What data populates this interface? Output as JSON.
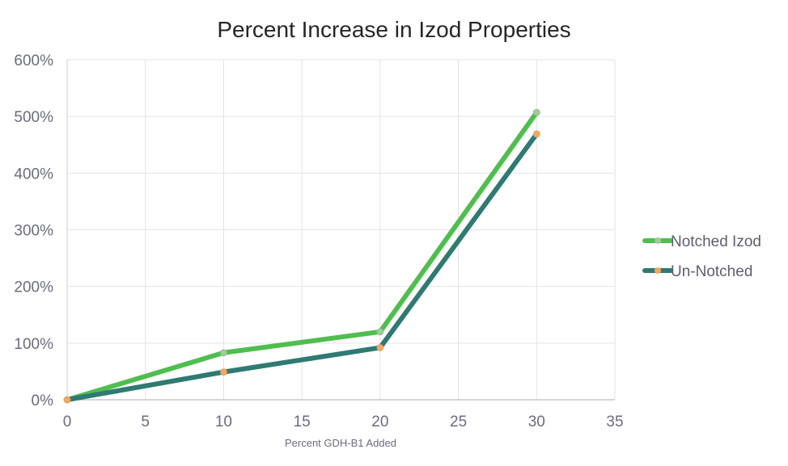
{
  "chart_data": {
    "type": "line",
    "title": "Percent Increase in Izod Properties",
    "xlabel": "Percent GDH-B1 Added",
    "ylabel": "",
    "xlim": [
      0,
      35
    ],
    "ylim": [
      0,
      600
    ],
    "x_ticks": [
      0,
      5,
      10,
      15,
      20,
      25,
      30,
      35
    ],
    "x_tick_labels": [
      "0",
      "5",
      "10",
      "15",
      "20",
      "25",
      "30",
      "35"
    ],
    "y_ticks": [
      0,
      100,
      200,
      300,
      400,
      500,
      600
    ],
    "y_tick_labels": [
      "0%",
      "100%",
      "200%",
      "300%",
      "400%",
      "500%",
      "600%"
    ],
    "grid": true,
    "legend_position": "right",
    "series": [
      {
        "name": "Notched Izod",
        "line_color": "#4fbe4f",
        "marker_color": "#9ecb9a",
        "x": [
          0,
          10,
          20,
          30
        ],
        "y": [
          0,
          83,
          120,
          507
        ]
      },
      {
        "name": "Un-Notched",
        "line_color": "#2f7a72",
        "marker_color": "#f0a866",
        "x": [
          0,
          10,
          20,
          30
        ],
        "y": [
          0,
          49,
          92,
          469
        ]
      }
    ]
  }
}
